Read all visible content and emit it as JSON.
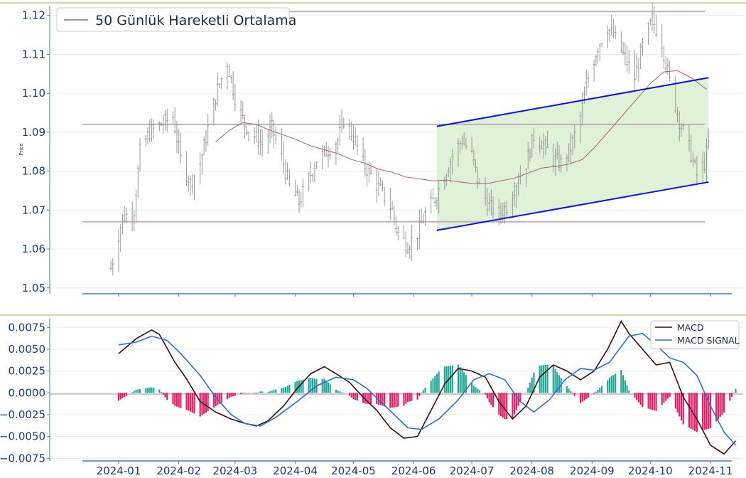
{
  "colors": {
    "candle": "#9a9a9a",
    "ma": "#a8607a",
    "hline": "#c4b0b8",
    "channel": "#0a17c8",
    "channel_fill": "#dcefd2",
    "macd": "#3d0a0a",
    "signal": "#2f6fc8",
    "hist_pos": "#22a89a",
    "hist_neg": "#e0206a",
    "separator": "#c9c49a",
    "axis": "#4a7ab0",
    "tick_text": "#1c3b6e"
  },
  "chart_data": [
    {
      "type": "candlestick",
      "ylabel": "Price",
      "ylim": [
        1.0485,
        1.1225
      ],
      "yticks": [
        1.05,
        1.06,
        1.07,
        1.08,
        1.09,
        1.1,
        1.11,
        1.12
      ],
      "ytick_labels": [
        "1.05",
        "1.06",
        "1.07",
        "1.08",
        "1.09",
        "1.10",
        "1.11",
        "1.12"
      ],
      "legend": {
        "label": "50 Günlük Hareketli Ortalama",
        "position": "top-left"
      },
      "horizontal_levels": [
        1.121,
        1.092,
        1.067
      ],
      "channel": {
        "upper": [
          [
            "2024-06-13",
            1.0915
          ],
          [
            "2024-10-31",
            1.104
          ]
        ],
        "lower": [
          [
            "2024-06-13",
            1.0648
          ],
          [
            "2024-10-31",
            1.0772
          ]
        ]
      },
      "moving_average_50": [
        [
          "2024-02-20",
          1.0875
        ],
        [
          "2024-02-27",
          1.0905
        ],
        [
          "2024-03-05",
          1.0925
        ],
        [
          "2024-03-12",
          1.092
        ],
        [
          "2024-03-19",
          1.0905
        ],
        [
          "2024-03-26",
          1.0893
        ],
        [
          "2024-04-02",
          1.088
        ],
        [
          "2024-04-09",
          1.0865
        ],
        [
          "2024-04-16",
          1.0855
        ],
        [
          "2024-04-23",
          1.0845
        ],
        [
          "2024-04-30",
          1.083
        ],
        [
          "2024-05-07",
          1.082
        ],
        [
          "2024-05-14",
          1.0805
        ],
        [
          "2024-05-21",
          1.0797
        ],
        [
          "2024-05-28",
          1.0785
        ],
        [
          "2024-06-04",
          1.078
        ],
        [
          "2024-06-11",
          1.0775
        ],
        [
          "2024-06-18",
          1.0777
        ],
        [
          "2024-06-25",
          1.0772
        ],
        [
          "2024-07-02",
          1.0768
        ],
        [
          "2024-07-09",
          1.0768
        ],
        [
          "2024-07-16",
          1.0775
        ],
        [
          "2024-07-23",
          1.0782
        ],
        [
          "2024-07-30",
          1.0795
        ],
        [
          "2024-08-06",
          1.0808
        ],
        [
          "2024-08-13",
          1.0812
        ],
        [
          "2024-08-20",
          1.0818
        ],
        [
          "2024-08-27",
          1.083
        ],
        [
          "2024-09-03",
          1.0865
        ],
        [
          "2024-09-10",
          1.0905
        ],
        [
          "2024-09-17",
          1.0945
        ],
        [
          "2024-09-24",
          1.0985
        ],
        [
          "2024-10-01",
          1.1025
        ],
        [
          "2024-10-08",
          1.1055
        ],
        [
          "2024-10-15",
          1.1058
        ],
        [
          "2024-10-22",
          1.104
        ],
        [
          "2024-10-30",
          1.101
        ]
      ],
      "price_path": [
        [
          "2023-12-28",
          1.055
        ],
        [
          "2024-01-03",
          1.068
        ],
        [
          "2024-01-09",
          1.07
        ],
        [
          "2024-01-12",
          1.085
        ],
        [
          "2024-01-17",
          1.09
        ],
        [
          "2024-01-23",
          1.092
        ],
        [
          "2024-01-29",
          1.094
        ],
        [
          "2024-02-02",
          1.083
        ],
        [
          "2024-02-07",
          1.077
        ],
        [
          "2024-02-12",
          1.082
        ],
        [
          "2024-02-16",
          1.091
        ],
        [
          "2024-02-21",
          1.101
        ],
        [
          "2024-02-26",
          1.108
        ],
        [
          "2024-03-01",
          1.099
        ],
        [
          "2024-03-06",
          1.092
        ],
        [
          "2024-03-11",
          1.089
        ],
        [
          "2024-03-15",
          1.087
        ],
        [
          "2024-03-20",
          1.091
        ],
        [
          "2024-03-26",
          1.082
        ],
        [
          "2024-03-29",
          1.076
        ],
        [
          "2024-04-03",
          1.072
        ],
        [
          "2024-04-08",
          1.078
        ],
        [
          "2024-04-12",
          1.083
        ],
        [
          "2024-04-17",
          1.085
        ],
        [
          "2024-04-23",
          1.088
        ],
        [
          "2024-04-26",
          1.093
        ],
        [
          "2024-05-01",
          1.089
        ],
        [
          "2024-05-06",
          1.082
        ],
        [
          "2024-05-10",
          1.079
        ],
        [
          "2024-05-15",
          1.075
        ],
        [
          "2024-05-21",
          1.07
        ],
        [
          "2024-05-24",
          1.064
        ],
        [
          "2024-05-29",
          1.061
        ],
        [
          "2024-06-03",
          1.064
        ],
        [
          "2024-06-07",
          1.069
        ],
        [
          "2024-06-12",
          1.073
        ],
        [
          "2024-06-17",
          1.079
        ],
        [
          "2024-06-21",
          1.084
        ],
        [
          "2024-06-26",
          1.088
        ],
        [
          "2024-07-01",
          1.084
        ],
        [
          "2024-07-05",
          1.076
        ],
        [
          "2024-07-10",
          1.071
        ],
        [
          "2024-07-15",
          1.069
        ],
        [
          "2024-07-19",
          1.071
        ],
        [
          "2024-07-24",
          1.077
        ],
        [
          "2024-07-29",
          1.082
        ],
        [
          "2024-08-02",
          1.089
        ],
        [
          "2024-08-07",
          1.087
        ],
        [
          "2024-08-12",
          1.083
        ],
        [
          "2024-08-16",
          1.082
        ],
        [
          "2024-08-21",
          1.086
        ],
        [
          "2024-08-26",
          1.094
        ],
        [
          "2024-08-30",
          1.104
        ],
        [
          "2024-09-04",
          1.112
        ],
        [
          "2024-09-09",
          1.117
        ],
        [
          "2024-09-13",
          1.114
        ],
        [
          "2024-09-18",
          1.109
        ],
        [
          "2024-09-23",
          1.104
        ],
        [
          "2024-09-27",
          1.112
        ],
        [
          "2024-10-02",
          1.119
        ],
        [
          "2024-10-07",
          1.113
        ],
        [
          "2024-10-11",
          1.103
        ],
        [
          "2024-10-16",
          1.093
        ],
        [
          "2024-10-21",
          1.086
        ],
        [
          "2024-10-25",
          1.079
        ],
        [
          "2024-10-29",
          1.082
        ],
        [
          "2024-10-31",
          1.087
        ]
      ]
    },
    {
      "type": "line+bar",
      "series": [
        {
          "name": "MACD"
        },
        {
          "name": "MACD SIGNAL"
        }
      ],
      "legend": {
        "position": "top-right"
      },
      "ylim": [
        -0.0078,
        0.0085
      ],
      "yticks": [
        -0.0075,
        -0.005,
        -0.0025,
        0.0,
        0.0025,
        0.005,
        0.0075
      ],
      "ytick_labels": [
        "−0.0075",
        "−0.0050",
        "−0.0025",
        "0.0000",
        "0.0025",
        "0.0050",
        "0.0075"
      ],
      "macd_points": [
        [
          "2024-01-01",
          0.0045
        ],
        [
          "2024-01-10",
          0.0062
        ],
        [
          "2024-01-18",
          0.0072
        ],
        [
          "2024-01-22",
          0.0067
        ],
        [
          "2024-01-30",
          0.0035
        ],
        [
          "2024-02-05",
          0.0016
        ],
        [
          "2024-02-12",
          -0.001
        ],
        [
          "2024-02-20",
          -0.0022
        ],
        [
          "2024-02-28",
          -0.003
        ],
        [
          "2024-03-06",
          -0.0035
        ],
        [
          "2024-03-12",
          -0.0038
        ],
        [
          "2024-03-18",
          -0.0032
        ],
        [
          "2024-03-26",
          -0.0015
        ],
        [
          "2024-04-02",
          0.0005
        ],
        [
          "2024-04-09",
          0.0022
        ],
        [
          "2024-04-16",
          0.003
        ],
        [
          "2024-04-22",
          0.0022
        ],
        [
          "2024-04-29",
          0.0012
        ],
        [
          "2024-05-06",
          -0.0005
        ],
        [
          "2024-05-13",
          -0.002
        ],
        [
          "2024-05-20",
          -0.004
        ],
        [
          "2024-05-27",
          -0.0052
        ],
        [
          "2024-06-03",
          -0.005
        ],
        [
          "2024-06-10",
          -0.002
        ],
        [
          "2024-06-17",
          0.001
        ],
        [
          "2024-06-24",
          0.0028
        ],
        [
          "2024-07-01",
          0.0025
        ],
        [
          "2024-07-08",
          0.0018
        ],
        [
          "2024-07-15",
          -0.001
        ],
        [
          "2024-07-22",
          -0.003
        ],
        [
          "2024-07-29",
          -0.0015
        ],
        [
          "2024-08-05",
          0.0018
        ],
        [
          "2024-08-12",
          0.0032
        ],
        [
          "2024-08-19",
          0.0025
        ],
        [
          "2024-08-26",
          0.0015
        ],
        [
          "2024-09-02",
          0.0025
        ],
        [
          "2024-09-09",
          0.005
        ],
        [
          "2024-09-16",
          0.0082
        ],
        [
          "2024-09-20",
          0.0068
        ],
        [
          "2024-09-27",
          0.005
        ],
        [
          "2024-10-04",
          0.0032
        ],
        [
          "2024-10-11",
          0.0035
        ],
        [
          "2024-10-18",
          -0.0005
        ],
        [
          "2024-10-25",
          -0.003
        ],
        [
          "2024-11-01",
          -0.006
        ],
        [
          "2024-11-08",
          -0.007
        ],
        [
          "2024-11-14",
          -0.0055
        ]
      ],
      "signal_points": [
        [
          "2024-01-01",
          0.0055
        ],
        [
          "2024-01-10",
          0.0058
        ],
        [
          "2024-01-18",
          0.0065
        ],
        [
          "2024-01-26",
          0.006
        ],
        [
          "2024-02-02",
          0.0045
        ],
        [
          "2024-02-12",
          0.002
        ],
        [
          "2024-02-20",
          -0.0005
        ],
        [
          "2024-02-28",
          -0.0025
        ],
        [
          "2024-03-06",
          -0.0035
        ],
        [
          "2024-03-14",
          -0.0038
        ],
        [
          "2024-03-22",
          -0.0028
        ],
        [
          "2024-04-02",
          -0.001
        ],
        [
          "2024-04-12",
          0.0008
        ],
        [
          "2024-04-22",
          0.0018
        ],
        [
          "2024-05-01",
          0.0015
        ],
        [
          "2024-05-08",
          0.0005
        ],
        [
          "2024-05-15",
          -0.001
        ],
        [
          "2024-05-22",
          -0.0025
        ],
        [
          "2024-05-29",
          -0.004
        ],
        [
          "2024-06-05",
          -0.0042
        ],
        [
          "2024-06-14",
          -0.003
        ],
        [
          "2024-06-24",
          -0.0008
        ],
        [
          "2024-07-02",
          0.0015
        ],
        [
          "2024-07-10",
          0.0022
        ],
        [
          "2024-07-18",
          0.0015
        ],
        [
          "2024-07-26",
          -0.001
        ],
        [
          "2024-08-02",
          -0.0022
        ],
        [
          "2024-08-10",
          -0.0008
        ],
        [
          "2024-08-18",
          0.0015
        ],
        [
          "2024-08-26",
          0.0028
        ],
        [
          "2024-09-02",
          0.0026
        ],
        [
          "2024-09-10",
          0.0035
        ],
        [
          "2024-09-20",
          0.0065
        ],
        [
          "2024-09-27",
          0.0068
        ],
        [
          "2024-10-04",
          0.0055
        ],
        [
          "2024-10-11",
          0.004
        ],
        [
          "2024-10-18",
          0.0035
        ],
        [
          "2024-10-25",
          0.002
        ],
        [
          "2024-11-01",
          -0.0015
        ],
        [
          "2024-11-08",
          -0.0045
        ],
        [
          "2024-11-14",
          -0.006
        ]
      ]
    }
  ],
  "x_axis": {
    "range": [
      "2023-12-18",
      "2024-11-18"
    ],
    "ticks": [
      "2024-01-01",
      "2024-02-01",
      "2024-03-01",
      "2024-04-01",
      "2024-05-01",
      "2024-06-01",
      "2024-07-01",
      "2024-08-01",
      "2024-09-01",
      "2024-10-01",
      "2024-11-01"
    ],
    "tick_labels": [
      "2024-01",
      "2024-02",
      "2024-03",
      "2024-04",
      "2024-05",
      "2024-06",
      "2024-07",
      "2024-08",
      "2024-09",
      "2024-10",
      "2024-11"
    ]
  }
}
